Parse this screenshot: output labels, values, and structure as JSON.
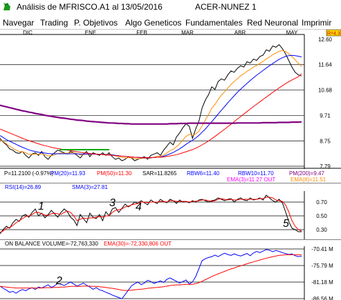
{
  "window": {
    "title": "Análisis de MFRISCO.A1 al 13/05/2016",
    "subtitle": "ACER-NUNEZ 1",
    "logo_icon": "green-bull-logo-icon"
  },
  "menu": [
    {
      "label": "Navegar"
    },
    {
      "label": "Trading"
    },
    {
      "label": "P. Objetivos"
    },
    {
      "label": "Algo Geneticos"
    },
    {
      "label": "Fundamentales"
    },
    {
      "label": "Red Neuronal"
    },
    {
      "label": "Imprimir"
    }
  ],
  "price_panel": {
    "last_badge": "R=4.3",
    "months": [
      "DIC",
      "ENE",
      "FEB",
      "MAR",
      "ABR",
      "MAY"
    ],
    "y_ticks": [
      "12.60",
      "11.64",
      "10.68",
      "9.71",
      "8.75",
      "7.79"
    ],
    "info_line1": [
      {
        "text": "P=11.2100 (-0.97%)",
        "color": "#000000"
      },
      {
        "text": "PM(20)=11.93",
        "color": "#0000ff"
      },
      {
        "text": "PM(50)=11.30",
        "color": "#ff0000"
      },
      {
        "text": "SAR=11.8265",
        "color": "#000000"
      },
      {
        "text": "RBW6=11.40",
        "color": "#0000ff"
      },
      {
        "text": "RBW10=11.70",
        "color": "#0000ff"
      },
      {
        "text": "PM(200)=9.47",
        "color": "#800080"
      }
    ],
    "info_line2": [
      {
        "text": "EMA(3)=11.27 OUT",
        "color": "#ff00ff"
      },
      {
        "text": "EMA(8)=11.51",
        "color": "#ff8c00"
      }
    ]
  },
  "rsi_panel": {
    "label_rsi": "RSI(14)=26.89",
    "label_sma": "SMA(3)=27.81",
    "y_ticks": [
      "0.70",
      "0.50",
      "0.30"
    ],
    "annotations": [
      "1",
      "3",
      "4",
      "5"
    ]
  },
  "obv_panel": {
    "label_obv": "ON BALANCE VOLUME=-72,763,330",
    "label_ema": "EMA(30)=-72,330,806  OUT",
    "y_ticks": [
      "-70.41 M",
      "-75.79 M",
      "-81.18 M",
      "-86.56 M"
    ],
    "annotations": [
      "2"
    ]
  },
  "colors": {
    "price": "#000000",
    "pm20": "#0000ff",
    "pm50": "#ff0000",
    "pm200": "#800080",
    "ema8": "#ff8c00",
    "support": "#00aa00",
    "rsi": "#000000",
    "sma": "#ff0000",
    "obv": "#0000ff",
    "obv_ema": "#ff0000",
    "grid": "#000000"
  },
  "chart_data": [
    {
      "type": "line",
      "panel": "price",
      "x_labels": [
        "DIC",
        "ENE",
        "FEB",
        "MAR",
        "ABR",
        "MAY"
      ],
      "ylim": [
        7.79,
        12.6
      ],
      "grid": true,
      "series": [
        {
          "name": "P",
          "values": [
            8.85,
            8.7,
            8.6,
            8.45,
            8.4,
            8.3,
            8.28,
            8.35,
            8.2,
            8.1,
            8.25,
            8.3,
            8.2,
            8.35,
            8.15,
            8.05,
            8.2,
            8.3,
            8.4,
            8.35,
            8.3,
            8.25,
            8.35,
            8.3,
            8.2,
            8.1,
            8.25,
            8.35,
            8.15,
            8.3,
            8.25,
            8.2,
            8.3,
            8.2,
            8.3,
            8.15,
            8.05,
            8.1,
            8.0,
            8.05,
            8.15,
            8.1,
            8.0,
            8.05,
            8.1,
            8.15,
            8.05,
            8.2,
            8.25,
            8.3,
            8.2,
            8.4,
            8.55,
            8.7,
            8.6,
            8.9,
            9.05,
            9.25,
            9.4,
            9.3,
            8.85,
            9.2,
            9.5,
            10.0,
            10.3,
            10.5,
            10.8,
            10.7,
            11.0,
            11.1,
            11.05,
            11.25,
            11.4,
            11.35,
            11.5,
            11.6,
            11.55,
            11.75,
            11.7,
            11.85,
            11.8,
            11.95,
            12.0,
            12.2,
            12.15,
            12.35,
            12.3,
            12.4,
            12.25,
            12.05,
            11.8,
            11.55,
            11.35,
            11.25,
            11.21
          ]
        },
        {
          "name": "EMA(8)",
          "values": [
            8.8,
            8.72,
            8.64,
            8.55,
            8.47,
            8.4,
            8.35,
            8.34,
            8.3,
            8.24,
            8.24,
            8.25,
            8.24,
            8.26,
            8.23,
            8.18,
            8.19,
            8.22,
            8.27,
            8.29,
            8.29,
            8.28,
            8.3,
            8.3,
            8.27,
            8.22,
            8.23,
            8.26,
            8.23,
            8.25,
            8.25,
            8.24,
            8.25,
            8.24,
            8.25,
            8.23,
            8.18,
            8.16,
            8.12,
            8.1,
            8.11,
            8.11,
            8.08,
            8.07,
            8.08,
            8.09,
            8.08,
            8.1,
            8.13,
            8.16,
            8.17,
            8.22,
            8.29,
            8.38,
            8.43,
            8.53,
            8.64,
            8.78,
            8.92,
            9.0,
            8.96,
            9.01,
            9.12,
            9.32,
            9.54,
            9.75,
            9.98,
            10.13,
            10.32,
            10.48,
            10.61,
            10.75,
            10.89,
            11.0,
            11.11,
            11.22,
            11.29,
            11.39,
            11.46,
            11.55,
            11.61,
            11.69,
            11.76,
            11.86,
            11.93,
            12.02,
            12.08,
            12.15,
            12.17,
            12.14,
            12.06,
            11.95,
            11.82,
            11.69,
            11.57
          ]
        },
        {
          "name": "PM(20)",
          "values": [
            8.95,
            8.88,
            8.8,
            8.74,
            8.68,
            8.62,
            8.56,
            8.51,
            8.46,
            8.41,
            8.37,
            8.35,
            8.32,
            8.3,
            8.29,
            8.27,
            8.26,
            8.26,
            8.26,
            8.26,
            8.26,
            8.26,
            8.26,
            8.26,
            8.26,
            8.25,
            8.25,
            8.25,
            8.25,
            8.25,
            8.24,
            8.24,
            8.24,
            8.23,
            8.23,
            8.22,
            8.2,
            8.19,
            8.17,
            8.16,
            8.15,
            8.14,
            8.13,
            8.12,
            8.11,
            8.11,
            8.1,
            8.11,
            8.12,
            8.13,
            8.14,
            8.17,
            8.21,
            8.26,
            8.31,
            8.38,
            8.45,
            8.53,
            8.62,
            8.7,
            8.77,
            8.86,
            8.96,
            9.08,
            9.2,
            9.34,
            9.48,
            9.62,
            9.77,
            9.91,
            10.05,
            10.19,
            10.33,
            10.46,
            10.59,
            10.71,
            10.82,
            10.93,
            11.04,
            11.14,
            11.24,
            11.33,
            11.42,
            11.51,
            11.6,
            11.68,
            11.76,
            11.84,
            11.9,
            11.95,
            11.98,
            11.99,
            11.98,
            11.96,
            11.93
          ]
        },
        {
          "name": "PM(50)",
          "values": [
            9.2,
            9.15,
            9.1,
            9.05,
            9.0,
            8.95,
            8.9,
            8.85,
            8.8,
            8.76,
            8.72,
            8.68,
            8.64,
            8.6,
            8.57,
            8.54,
            8.51,
            8.48,
            8.46,
            8.44,
            8.42,
            8.4,
            8.38,
            8.36,
            8.34,
            8.32,
            8.3,
            8.29,
            8.27,
            8.26,
            8.25,
            8.24,
            8.23,
            8.22,
            8.21,
            8.2,
            8.19,
            8.18,
            8.17,
            8.16,
            8.15,
            8.14,
            8.13,
            8.13,
            8.12,
            8.12,
            8.12,
            8.12,
            8.12,
            8.13,
            8.13,
            8.14,
            8.16,
            8.18,
            8.2,
            8.23,
            8.26,
            8.3,
            8.34,
            8.38,
            8.42,
            8.47,
            8.53,
            8.6,
            8.67,
            8.75,
            8.83,
            8.92,
            9.01,
            9.1,
            9.19,
            9.29,
            9.38,
            9.48,
            9.58,
            9.67,
            9.77,
            9.86,
            9.96,
            10.05,
            10.14,
            10.23,
            10.32,
            10.41,
            10.5,
            10.59,
            10.67,
            10.76,
            10.84,
            10.92,
            10.99,
            11.06,
            11.12,
            11.18,
            11.3
          ]
        },
        {
          "name": "PM(200)",
          "values": [
            10.1,
            10.07,
            10.04,
            10.01,
            9.98,
            9.95,
            9.92,
            9.89,
            9.87,
            9.84,
            9.82,
            9.79,
            9.77,
            9.75,
            9.72,
            9.7,
            9.68,
            9.66,
            9.64,
            9.62,
            9.61,
            9.59,
            9.57,
            9.56,
            9.54,
            9.53,
            9.52,
            9.5,
            9.49,
            9.48,
            9.47,
            9.46,
            9.45,
            9.44,
            9.43,
            9.43,
            9.42,
            9.41,
            9.41,
            9.4,
            9.4,
            9.39,
            9.39,
            9.39,
            9.39,
            9.39,
            9.39,
            9.39,
            9.39,
            9.39,
            9.39,
            9.39,
            9.39,
            9.4,
            9.4,
            9.4,
            9.41,
            9.41,
            9.41,
            9.42,
            9.42,
            9.42,
            9.42,
            9.42,
            9.42,
            9.42,
            9.42,
            9.42,
            9.42,
            9.42,
            9.42,
            9.42,
            9.42,
            9.42,
            9.43,
            9.43,
            9.43,
            9.43,
            9.43,
            9.43,
            9.43,
            9.43,
            9.44,
            9.44,
            9.44,
            9.44,
            9.44,
            9.45,
            9.45,
            9.45,
            9.45,
            9.46,
            9.46,
            9.46,
            9.47
          ]
        }
      ]
    },
    {
      "type": "line",
      "panel": "rsi",
      "ylim": [
        0.18,
        0.86
      ],
      "grid": true,
      "series": [
        {
          "name": "RSI(14)",
          "values": [
            0.24,
            0.3,
            0.35,
            0.32,
            0.4,
            0.45,
            0.42,
            0.5,
            0.52,
            0.48,
            0.55,
            0.6,
            0.5,
            0.54,
            0.47,
            0.52,
            0.58,
            0.53,
            0.48,
            0.55,
            0.6,
            0.56,
            0.48,
            0.44,
            0.36,
            0.52,
            0.46,
            0.4,
            0.54,
            0.48,
            0.46,
            0.52,
            0.43,
            0.56,
            0.5,
            0.6,
            0.62,
            0.55,
            0.61,
            0.67,
            0.63,
            0.66,
            0.7,
            0.68,
            0.72,
            0.69,
            0.66,
            0.73,
            0.7,
            0.68,
            0.74,
            0.71,
            0.69,
            0.74,
            0.72,
            0.68,
            0.73,
            0.7,
            0.71,
            0.69,
            0.72,
            0.7,
            0.73,
            0.74,
            0.72,
            0.7,
            0.72,
            0.73,
            0.76,
            0.74,
            0.72,
            0.74,
            0.75,
            0.7,
            0.74,
            0.76,
            0.73,
            0.72,
            0.76,
            0.73,
            0.74,
            0.76,
            0.73,
            0.8,
            0.76,
            0.72,
            0.7,
            0.74,
            0.69,
            0.56,
            0.42,
            0.32,
            0.3,
            0.27,
            0.27
          ]
        },
        {
          "name": "SMA(3)",
          "values": [
            0.26,
            0.28,
            0.32,
            0.33,
            0.36,
            0.4,
            0.43,
            0.46,
            0.49,
            0.5,
            0.52,
            0.55,
            0.55,
            0.53,
            0.51,
            0.51,
            0.53,
            0.54,
            0.53,
            0.52,
            0.55,
            0.57,
            0.55,
            0.5,
            0.43,
            0.45,
            0.47,
            0.46,
            0.47,
            0.47,
            0.48,
            0.49,
            0.48,
            0.5,
            0.5,
            0.55,
            0.58,
            0.59,
            0.6,
            0.63,
            0.64,
            0.66,
            0.67,
            0.68,
            0.7,
            0.7,
            0.69,
            0.7,
            0.7,
            0.7,
            0.71,
            0.71,
            0.7,
            0.72,
            0.72,
            0.71,
            0.71,
            0.71,
            0.71,
            0.7,
            0.71,
            0.71,
            0.72,
            0.73,
            0.73,
            0.72,
            0.71,
            0.72,
            0.74,
            0.75,
            0.74,
            0.73,
            0.74,
            0.73,
            0.73,
            0.74,
            0.74,
            0.74,
            0.74,
            0.74,
            0.74,
            0.75,
            0.75,
            0.77,
            0.77,
            0.76,
            0.73,
            0.72,
            0.71,
            0.66,
            0.56,
            0.43,
            0.35,
            0.3,
            0.28
          ]
        }
      ]
    },
    {
      "type": "line",
      "panel": "obv",
      "ylim": [
        -86.56,
        -70.41
      ],
      "grid": true,
      "series": [
        {
          "name": "ON BALANCE VOLUME",
          "values": [
            -82.5,
            -83.2,
            -83.8,
            -84.5,
            -84.2,
            -84.8,
            -84.1,
            -83.6,
            -84.0,
            -83.4,
            -83.0,
            -83.6,
            -82.8,
            -83.1,
            -82.6,
            -82.1,
            -82.9,
            -82.4,
            -81.6,
            -81.9,
            -82.3,
            -81.7,
            -81.2,
            -81.8,
            -82.5,
            -82.0,
            -81.5,
            -82.2,
            -82.8,
            -83.5,
            -83.0,
            -83.7,
            -84.0,
            -84.5,
            -84.9,
            -85.4,
            -85.8,
            -86.2,
            -86.6,
            -85.2,
            -83.8,
            -82.4,
            -81.7,
            -81.2,
            -82.0,
            -81.5,
            -80.6,
            -81.0,
            -81.6,
            -81.2,
            -80.8,
            -81.3,
            -80.3,
            -79.8,
            -80.4,
            -80.9,
            -81.5,
            -81.0,
            -80.5,
            -81.8,
            -81.1,
            -79.4,
            -76.8,
            -74.2,
            -73.6,
            -73.2,
            -72.9,
            -72.4,
            -72.9,
            -72.3,
            -71.8,
            -72.2,
            -72.5,
            -72.0,
            -72.4,
            -72.7,
            -72.3,
            -71.9,
            -72.6,
            -71.7,
            -71.2,
            -71.6,
            -71.1,
            -70.6,
            -70.8,
            -71.3,
            -70.9,
            -71.2,
            -71.6,
            -71.9,
            -72.2,
            -72.0,
            -72.6,
            -72.9,
            -72.76
          ]
        },
        {
          "name": "EMA(30)",
          "values": [
            -82.6,
            -82.7,
            -82.8,
            -82.9,
            -83.0,
            -83.1,
            -83.1,
            -83.1,
            -83.1,
            -83.1,
            -83.1,
            -83.1,
            -83.1,
            -83.1,
            -83.0,
            -83.0,
            -83.0,
            -82.9,
            -82.9,
            -82.8,
            -82.8,
            -82.7,
            -82.6,
            -82.6,
            -82.6,
            -82.6,
            -82.5,
            -82.5,
            -82.5,
            -82.6,
            -82.6,
            -82.7,
            -82.8,
            -82.9,
            -83.1,
            -83.2,
            -83.4,
            -83.6,
            -83.8,
            -83.9,
            -83.9,
            -83.8,
            -83.7,
            -83.6,
            -83.5,
            -83.4,
            -83.2,
            -83.1,
            -83.0,
            -82.9,
            -82.8,
            -82.7,
            -82.5,
            -82.3,
            -82.2,
            -82.1,
            -82.1,
            -82.0,
            -81.9,
            -81.9,
            -81.9,
            -81.7,
            -81.4,
            -80.9,
            -80.4,
            -79.9,
            -79.4,
            -78.9,
            -78.5,
            -78.1,
            -77.7,
            -77.3,
            -76.9,
            -76.6,
            -76.2,
            -75.9,
            -75.6,
            -75.2,
            -74.9,
            -74.6,
            -74.3,
            -74.0,
            -73.7,
            -73.4,
            -73.2,
            -72.9,
            -72.7,
            -72.5,
            -72.4,
            -72.3,
            -72.3,
            -72.3,
            -72.3,
            -72.3,
            -72.33
          ]
        }
      ]
    }
  ]
}
